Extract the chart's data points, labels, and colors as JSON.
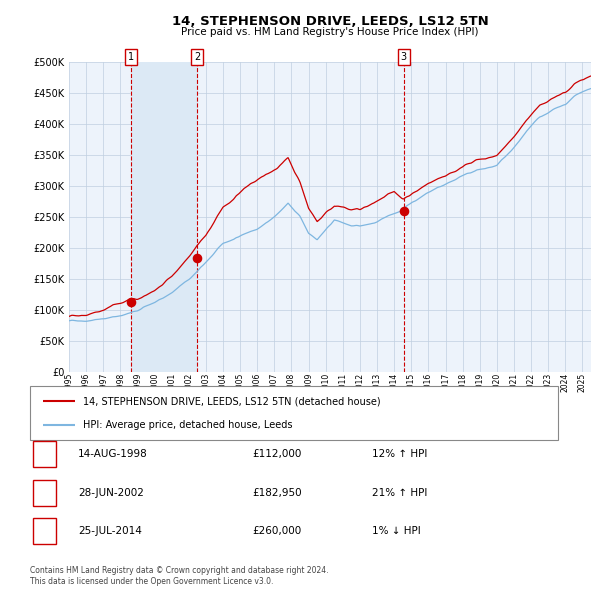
{
  "title": "14, STEPHENSON DRIVE, LEEDS, LS12 5TN",
  "subtitle": "Price paid vs. HM Land Registry's House Price Index (HPI)",
  "legend_line1": "14, STEPHENSON DRIVE, LEEDS, LS12 5TN (detached house)",
  "legend_line2": "HPI: Average price, detached house, Leeds",
  "sales": [
    {
      "num": 1,
      "date_label": "14-AUG-1998",
      "date_x": 1998.62,
      "price": 112000
    },
    {
      "num": 2,
      "date_label": "28-JUN-2002",
      "date_x": 2002.49,
      "price": 182950
    },
    {
      "num": 3,
      "date_label": "25-JUL-2014",
      "date_x": 2014.56,
      "price": 260000
    }
  ],
  "table_rows": [
    {
      "num": 1,
      "date": "14-AUG-1998",
      "price": "£112,000",
      "pct": "12% ↑ HPI"
    },
    {
      "num": 2,
      "date": "28-JUN-2002",
      "price": "£182,950",
      "pct": "21% ↑ HPI"
    },
    {
      "num": 3,
      "date": "25-JUL-2014",
      "price": "£260,000",
      "pct": "1% ↓ HPI"
    }
  ],
  "footnote1": "Contains HM Land Registry data © Crown copyright and database right 2024.",
  "footnote2": "This data is licensed under the Open Government Licence v3.0.",
  "hpi_color": "#7eb6e0",
  "price_color": "#cc0000",
  "shading_color": "#dce9f5",
  "grid_color": "#c0cfe0",
  "background_color": "#edf3fb",
  "ylim": [
    0,
    500000
  ],
  "xlim_start": 1995.0,
  "xlim_end": 2025.5,
  "hpi_anchors": [
    [
      1995.0,
      82000
    ],
    [
      1996.0,
      84000
    ],
    [
      1997.0,
      88000
    ],
    [
      1998.0,
      93000
    ],
    [
      1999.0,
      100000
    ],
    [
      2000.0,
      112000
    ],
    [
      2001.0,
      128000
    ],
    [
      2002.0,
      148000
    ],
    [
      2003.0,
      175000
    ],
    [
      2004.0,
      205000
    ],
    [
      2005.0,
      218000
    ],
    [
      2006.0,
      232000
    ],
    [
      2007.0,
      252000
    ],
    [
      2007.8,
      272000
    ],
    [
      2008.5,
      252000
    ],
    [
      2009.0,
      225000
    ],
    [
      2009.5,
      215000
    ],
    [
      2010.0,
      232000
    ],
    [
      2010.5,
      248000
    ],
    [
      2011.0,
      242000
    ],
    [
      2011.5,
      237000
    ],
    [
      2012.0,
      236000
    ],
    [
      2012.5,
      238000
    ],
    [
      2013.0,
      240000
    ],
    [
      2013.5,
      245000
    ],
    [
      2014.0,
      250000
    ],
    [
      2014.5,
      256000
    ],
    [
      2015.0,
      268000
    ],
    [
      2016.0,
      282000
    ],
    [
      2017.0,
      295000
    ],
    [
      2018.0,
      306000
    ],
    [
      2019.0,
      315000
    ],
    [
      2020.0,
      322000
    ],
    [
      2021.0,
      350000
    ],
    [
      2022.0,
      385000
    ],
    [
      2022.5,
      400000
    ],
    [
      2023.0,
      408000
    ],
    [
      2023.5,
      415000
    ],
    [
      2024.0,
      418000
    ],
    [
      2024.5,
      430000
    ],
    [
      2025.3,
      440000
    ]
  ],
  "prop_ratio_anchors": [
    [
      1995.0,
      1.08
    ],
    [
      1998.62,
      1.204
    ],
    [
      1999.5,
      1.15
    ],
    [
      2001.0,
      1.18
    ],
    [
      2002.49,
      1.236
    ],
    [
      2003.0,
      1.22
    ],
    [
      2005.0,
      1.3
    ],
    [
      2006.0,
      1.32
    ],
    [
      2007.0,
      1.28
    ],
    [
      2007.8,
      1.24
    ],
    [
      2008.5,
      1.18
    ],
    [
      2009.5,
      1.1
    ],
    [
      2010.5,
      1.05
    ],
    [
      2012.0,
      1.06
    ],
    [
      2013.0,
      1.09
    ],
    [
      2014.0,
      1.1
    ],
    [
      2014.56,
      1.016
    ],
    [
      2015.0,
      1.0
    ],
    [
      2016.0,
      1.0
    ],
    [
      2017.0,
      1.0
    ],
    [
      2018.0,
      1.0
    ],
    [
      2019.0,
      1.0
    ],
    [
      2020.0,
      1.0
    ],
    [
      2021.0,
      1.0
    ],
    [
      2022.0,
      1.0
    ],
    [
      2023.0,
      1.0
    ],
    [
      2024.0,
      1.0
    ],
    [
      2025.3,
      1.0
    ]
  ]
}
